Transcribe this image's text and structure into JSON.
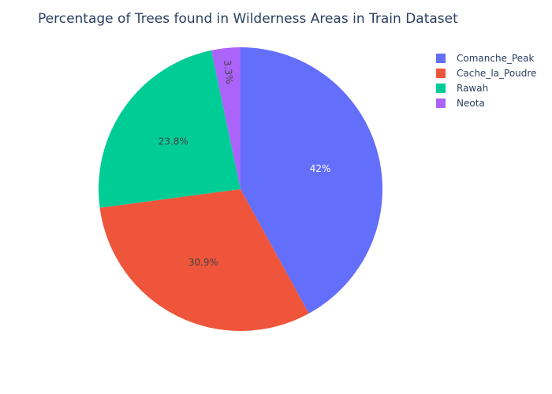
{
  "chart_data": {
    "type": "pie",
    "title": "Percentage of Trees found in Wilderness Areas in Train Dataset",
    "categories": [
      "Comanche_Peak",
      "Cache_la_Poudre",
      "Rawah",
      "Neota"
    ],
    "values": [
      42,
      30.9,
      23.8,
      3.3
    ],
    "labels": [
      "42%",
      "30.9%",
      "23.8%",
      "3.3%"
    ],
    "colors": [
      "#636efa",
      "#ef553b",
      "#00cc96",
      "#ab63fa"
    ],
    "label_colors": [
      "#ffffff",
      "#444444",
      "#444444",
      "#444444"
    ],
    "legend": {
      "placement": "top-right",
      "items": [
        "Comanche_Peak",
        "Cache_la_Poudre",
        "Rawah",
        "Neota"
      ]
    },
    "direction": "clockwise",
    "start": "top"
  }
}
